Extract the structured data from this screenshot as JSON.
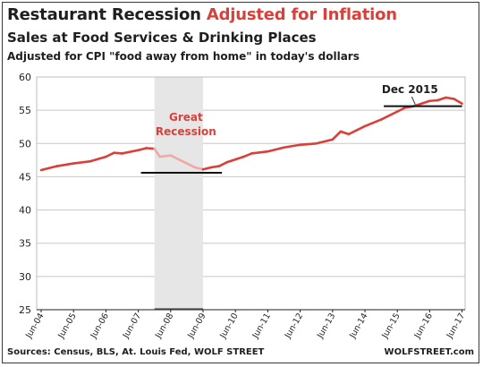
{
  "chart_data": {
    "type": "line",
    "title": "Restaurant Recession",
    "title_highlight": "Adjusted for Inflation",
    "subtitle": "Sales at Food Services & Drinking Places",
    "note": "Adjusted for CPI \"food away from home\" in today's dollars",
    "source": "Sources: Census, BLS, At. Louis Fed, WOLF STREET",
    "credit": "WOLFSTREET.com",
    "xlabel": "",
    "ylabel": "",
    "ylim": [
      25,
      60
    ],
    "yticks": [
      25,
      30,
      35,
      40,
      45,
      50,
      55,
      60
    ],
    "xticks": [
      "Jun-04",
      "Jun-05",
      "Jun-06",
      "Jun-07",
      "Jun-08",
      "Jun-09",
      "Jun-10",
      "Jun-11",
      "Jun-12",
      "Jun-13",
      "Jun-14",
      "Jun-15",
      "Jun-16",
      "Jun-17"
    ],
    "grid": true,
    "recession_band": {
      "start": "Dec-07",
      "end": "Jun-09"
    },
    "series": [
      {
        "name": "",
        "color": "#d9403a",
        "recession_color": "#f0aaa6",
        "x": [
          "Jun-04",
          "Dec-04",
          "Jun-05",
          "Dec-05",
          "Jun-06",
          "Sep-06",
          "Dec-06",
          "Jun-07",
          "Sep-07",
          "Dec-07",
          "Feb-08",
          "Jun-08",
          "Sep-08",
          "Dec-08",
          "Mar-09",
          "Jun-09",
          "Sep-09",
          "Dec-09",
          "Mar-10",
          "Jun-10",
          "Sep-10",
          "Dec-10",
          "Jun-11",
          "Dec-11",
          "Jun-12",
          "Dec-12",
          "Jun-13",
          "Sep-13",
          "Dec-13",
          "Jun-14",
          "Dec-14",
          "Jun-15",
          "Sep-15",
          "Dec-15",
          "Mar-16",
          "Jun-16",
          "Sep-16",
          "Dec-16",
          "Mar-17",
          "Jun-17"
        ],
        "values": [
          46.0,
          46.6,
          47.0,
          47.3,
          48.0,
          48.6,
          48.5,
          49.0,
          49.3,
          49.2,
          48.0,
          48.2,
          47.6,
          47.0,
          46.4,
          46.1,
          46.4,
          46.6,
          47.2,
          47.6,
          48.0,
          48.5,
          48.8,
          49.4,
          49.8,
          50.0,
          50.6,
          51.8,
          51.4,
          52.6,
          53.6,
          54.8,
          55.4,
          55.6,
          56.0,
          56.4,
          56.5,
          56.9,
          56.7,
          56.0
        ]
      }
    ],
    "annotations": [
      {
        "text_lines": [
          "Great",
          "Recession"
        ],
        "color": "#d9403a"
      },
      {
        "text": "Dec 2015",
        "color": "#1f1f1f"
      }
    ],
    "reference_lines": [
      {
        "value": 45.6,
        "from": "Jul-07",
        "to": "Jan-10"
      },
      {
        "value": 55.6,
        "from": "Jan-15",
        "to": "Jun-17"
      }
    ]
  }
}
